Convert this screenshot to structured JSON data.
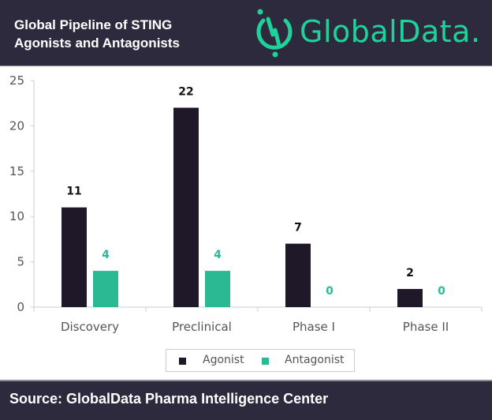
{
  "header": {
    "title_line1": "Global Pipeline of STING",
    "title_line2": "Agonists and Antagonists",
    "logo_text": "GlobalData."
  },
  "footer": {
    "source": "Source: GlobalData Pharma Intelligence Center"
  },
  "colors": {
    "agonist": "#1e1828",
    "antagonist": "#2bb994",
    "header_bg": "#2d2a3e",
    "logo": "#1ed39a"
  },
  "chart_data": {
    "type": "bar",
    "title": "Global Pipeline of STING Agonists and Antagonists",
    "xlabel": "",
    "ylabel": "",
    "categories": [
      "Discovery",
      "Preclinical",
      "Phase I",
      "Phase II"
    ],
    "series": [
      {
        "name": "Agonist",
        "values": [
          11,
          22,
          7,
          2
        ]
      },
      {
        "name": "Antagonist",
        "values": [
          4,
          4,
          0,
          0
        ]
      }
    ],
    "ylim": [
      0,
      25
    ],
    "yticks": [
      0,
      5,
      10,
      15,
      20,
      25
    ],
    "grid": false,
    "legend": "bottom-center",
    "data_labels": true
  }
}
